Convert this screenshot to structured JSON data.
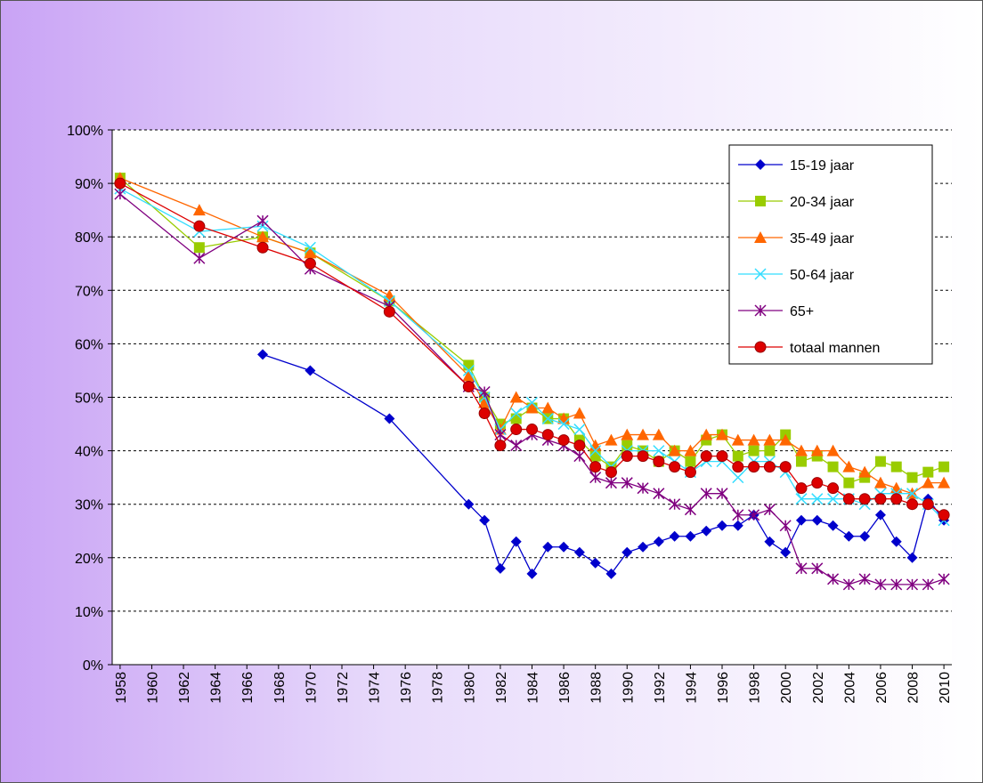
{
  "chart_data": {
    "type": "line",
    "x": [
      1958,
      1963,
      1967,
      1970,
      1975,
      1980,
      1981,
      1982,
      1983,
      1984,
      1985,
      1986,
      1987,
      1988,
      1989,
      1990,
      1991,
      1992,
      1993,
      1994,
      1995,
      1996,
      1997,
      1998,
      1999,
      2000,
      2001,
      2002,
      2003,
      2004,
      2005,
      2006,
      2007,
      2008,
      2009,
      2010
    ],
    "xlim": [
      1957.5,
      2010.5
    ],
    "xticks": [
      1958,
      1960,
      1962,
      1964,
      1966,
      1968,
      1970,
      1972,
      1974,
      1976,
      1978,
      1980,
      1982,
      1984,
      1986,
      1988,
      1990,
      1992,
      1994,
      1996,
      1998,
      2000,
      2002,
      2004,
      2006,
      2008,
      2010
    ],
    "ylim": [
      0,
      100
    ],
    "yticks": [
      {
        "value": 0,
        "label": "0%"
      },
      {
        "value": 10,
        "label": "10%"
      },
      {
        "value": 20,
        "label": "20%"
      },
      {
        "value": 30,
        "label": "30%"
      },
      {
        "value": 40,
        "label": "40%"
      },
      {
        "value": 50,
        "label": "50%"
      },
      {
        "value": 60,
        "label": "60%"
      },
      {
        "value": 70,
        "label": "70%"
      },
      {
        "value": 80,
        "label": "80%"
      },
      {
        "value": 90,
        "label": "90%"
      },
      {
        "value": 100,
        "label": "100%"
      }
    ],
    "grid": true,
    "legend": "upper right",
    "series": [
      {
        "name": "15-19 jaar",
        "color": "#0000cc",
        "marker": "diamond",
        "values": [
          null,
          null,
          58,
          55,
          46,
          30,
          27,
          18,
          23,
          17,
          22,
          22,
          21,
          19,
          17,
          21,
          22,
          23,
          24,
          24,
          25,
          26,
          26,
          28,
          23,
          21,
          27,
          27,
          26,
          24,
          24,
          28,
          23,
          20,
          31,
          27
        ]
      },
      {
        "name": "20-34 jaar",
        "color": "#99cc00",
        "marker": "square",
        "values": [
          91,
          78,
          80,
          77,
          68,
          56,
          50,
          45,
          46,
          48,
          46,
          46,
          42,
          39,
          37,
          41,
          40,
          38,
          40,
          38,
          42,
          43,
          39,
          40,
          40,
          43,
          38,
          39,
          37,
          34,
          35,
          38,
          37,
          35,
          36,
          37
        ]
      },
      {
        "name": "35-49 jaar",
        "color": "#ff6600",
        "marker": "triangle",
        "values": [
          91,
          85,
          80,
          77,
          69,
          54,
          49,
          44,
          50,
          48,
          48,
          46,
          47,
          41,
          42,
          43,
          43,
          43,
          40,
          40,
          43,
          43,
          42,
          42,
          42,
          42,
          40,
          40,
          40,
          37,
          36,
          34,
          33,
          32,
          34,
          34
        ]
      },
      {
        "name": "50-64 jaar",
        "color": "#33ddff",
        "marker": "x",
        "values": [
          89,
          81,
          82,
          78,
          68,
          55,
          50,
          44,
          47,
          49,
          46,
          45,
          44,
          40,
          37,
          40,
          40,
          40,
          38,
          36,
          38,
          38,
          35,
          38,
          38,
          36,
          31,
          31,
          31,
          31,
          30,
          32,
          32,
          32,
          30,
          27
        ]
      },
      {
        "name": "65+",
        "color": "#800080",
        "marker": "star",
        "values": [
          88,
          76,
          83,
          74,
          67,
          52,
          51,
          43,
          41,
          43,
          42,
          41,
          39,
          35,
          34,
          34,
          33,
          32,
          30,
          29,
          32,
          32,
          28,
          28,
          29,
          26,
          18,
          18,
          16,
          15,
          16,
          15,
          15,
          15,
          15,
          16
        ]
      },
      {
        "name": "totaal mannen",
        "color": "#dd0000",
        "marker": "circle",
        "values": [
          90,
          82,
          78,
          75,
          66,
          52,
          47,
          41,
          44,
          44,
          43,
          42,
          41,
          37,
          36,
          39,
          39,
          38,
          37,
          36,
          39,
          39,
          37,
          37,
          37,
          37,
          33,
          34,
          33,
          31,
          31,
          31,
          31,
          30,
          30,
          28
        ]
      }
    ]
  }
}
